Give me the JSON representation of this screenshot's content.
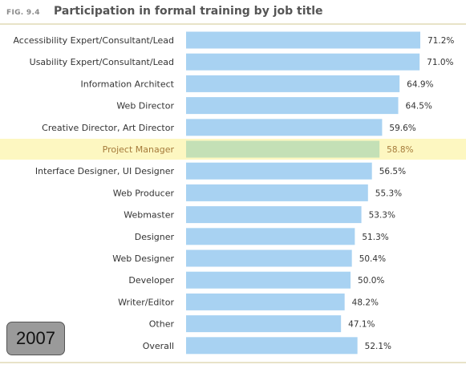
{
  "figure": {
    "number": "FIG. 9.4",
    "title": "Participation in formal training by job title",
    "badge": "2007"
  },
  "colors": {
    "bar": "#a8d2f2",
    "highlight_bar": "#c4e0b6",
    "highlight_row": "#fdf7c1",
    "label": "#333333",
    "highlight_label": "#a57a3a",
    "rule": "#e8e3c8"
  },
  "chart_data": {
    "type": "bar",
    "orientation": "horizontal",
    "categories": [
      "Accessibility Expert/Consultant/Lead",
      "Usability Expert/Consultant/Lead",
      "Information Architect",
      "Web Director",
      "Creative Director, Art Director",
      "Project Manager",
      "Interface Designer, UI Designer",
      "Web Producer",
      "Webmaster",
      "Designer",
      "Web Designer",
      "Developer",
      "Writer/Editor",
      "Other",
      "Overall"
    ],
    "values": [
      71.2,
      71.0,
      64.9,
      64.5,
      59.6,
      58.8,
      56.5,
      55.3,
      53.3,
      51.3,
      50.4,
      50.0,
      48.2,
      47.1,
      52.1
    ],
    "value_labels": [
      "71.2%",
      "71.0%",
      "64.9%",
      "64.5%",
      "59.6%",
      "58.8%",
      "56.5%",
      "55.3%",
      "53.3%",
      "51.3%",
      "50.4%",
      "50.0%",
      "48.2%",
      "47.1%",
      "52.1%"
    ],
    "highlighted_category": "Project Manager",
    "unit": "%",
    "xlim": [
      0,
      100
    ],
    "grid": false,
    "legend": "none"
  }
}
